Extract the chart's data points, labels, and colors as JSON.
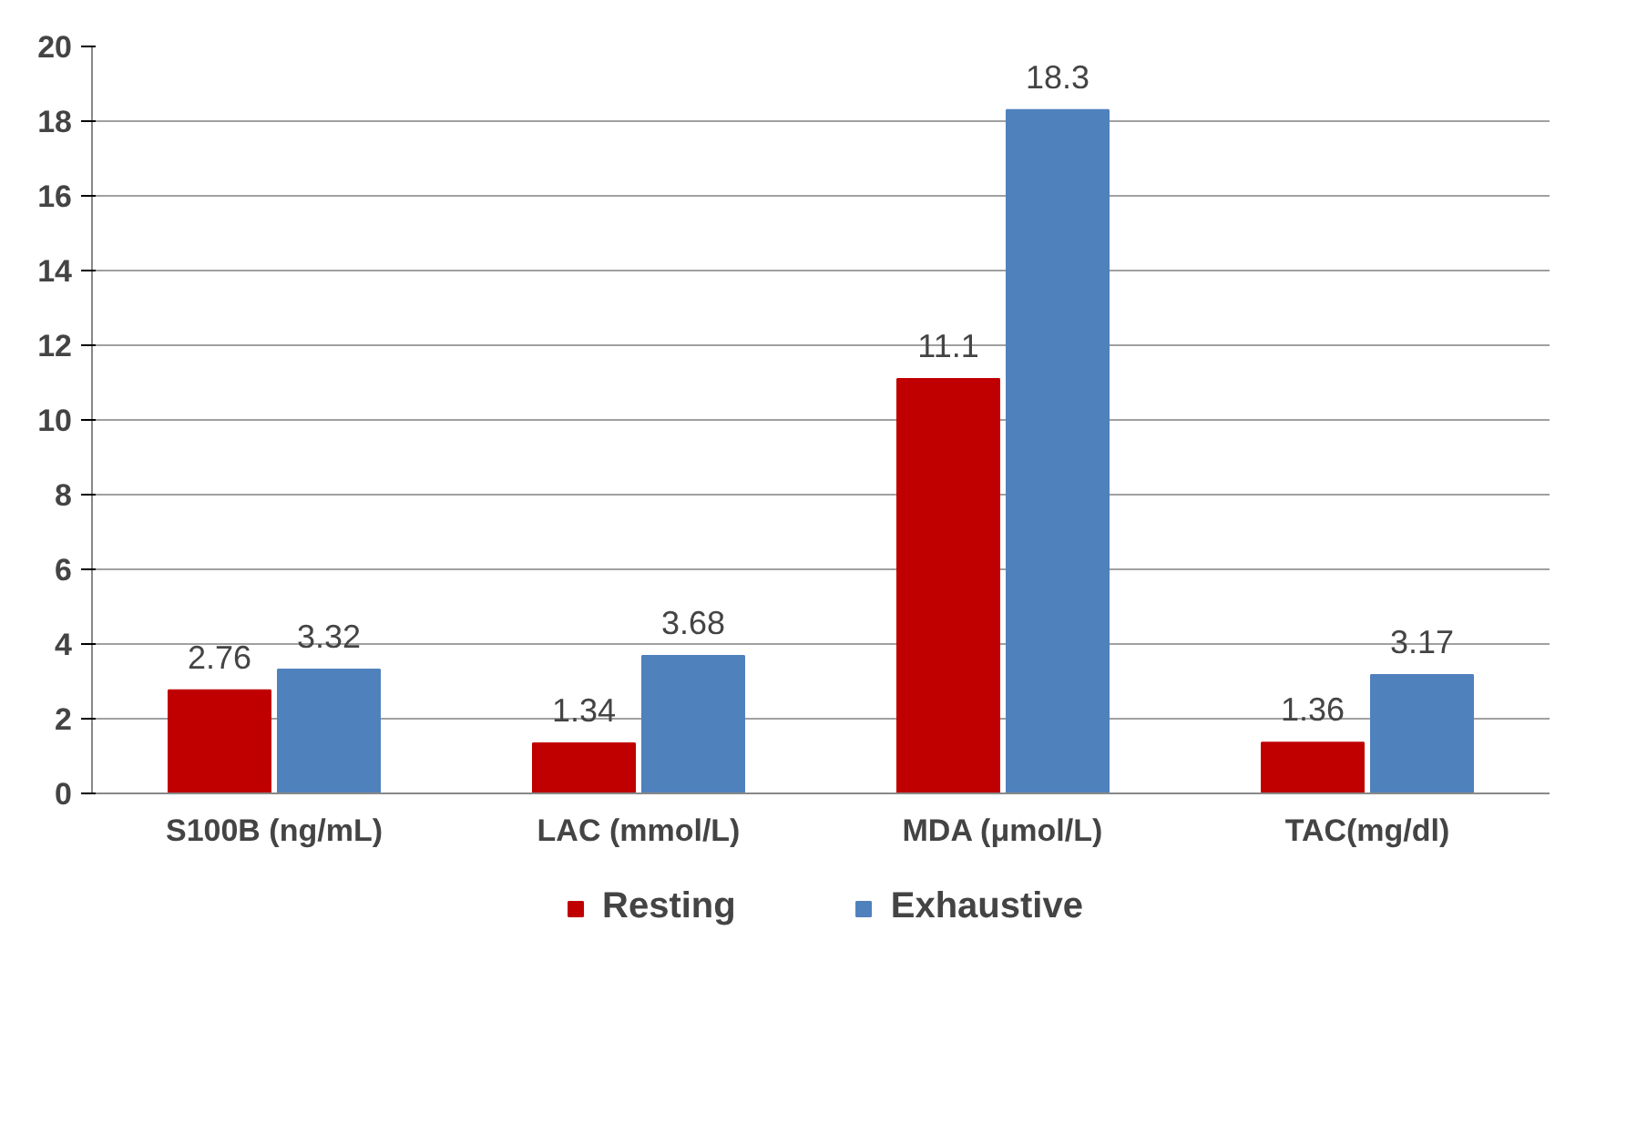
{
  "chart_data": {
    "type": "bar",
    "categories": [
      "S100B (ng/mL)",
      "LAC (mmol/L)",
      "MDA (μmol/L)",
      "TAC(mg/dl)"
    ],
    "series": [
      {
        "name": "Resting",
        "color": "#c00000",
        "values": [
          2.76,
          1.34,
          11.1,
          1.36
        ]
      },
      {
        "name": "Exhaustive",
        "color": "#4f81bd",
        "values": [
          3.32,
          3.68,
          18.3,
          3.17
        ]
      }
    ],
    "ylim": [
      0,
      20
    ],
    "yticks": [
      0,
      2,
      4,
      6,
      8,
      10,
      12,
      14,
      16,
      18,
      20
    ],
    "grid": "y",
    "legend": "bottom",
    "data_labels": true
  }
}
